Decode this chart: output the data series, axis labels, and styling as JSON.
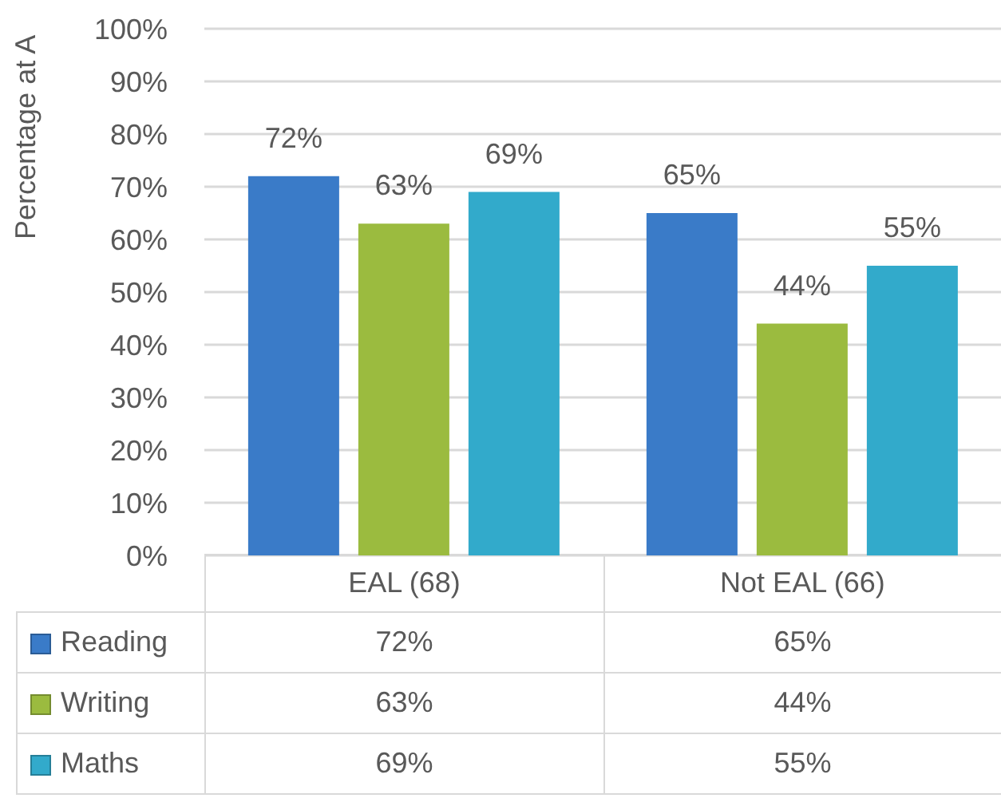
{
  "chart_data": {
    "type": "bar",
    "ylabel": "Percentage at A",
    "categories": [
      "EAL (68)",
      "Not EAL (66)"
    ],
    "series": [
      {
        "name": "Reading",
        "color": "#3a7bc8",
        "values": [
          72,
          65
        ],
        "value_labels": [
          "72%",
          "65%"
        ]
      },
      {
        "name": "Writing",
        "color": "#9bbb3f",
        "values": [
          63,
          44
        ],
        "value_labels": [
          "63%",
          "44%"
        ]
      },
      {
        "name": "Maths",
        "color": "#32aacb",
        "values": [
          69,
          55
        ],
        "value_labels": [
          "69%",
          "55%"
        ]
      }
    ],
    "ylim": [
      0,
      100
    ],
    "yticks": [
      {
        "value": 0,
        "label": "0%"
      },
      {
        "value": 10,
        "label": "10%"
      },
      {
        "value": 20,
        "label": "20%"
      },
      {
        "value": 30,
        "label": "30%"
      },
      {
        "value": 40,
        "label": "40%"
      },
      {
        "value": 50,
        "label": "50%"
      },
      {
        "value": 60,
        "label": "60%"
      },
      {
        "value": 70,
        "label": "70%"
      },
      {
        "value": 80,
        "label": "80%"
      },
      {
        "value": 90,
        "label": "90%"
      },
      {
        "value": 100,
        "label": "100%"
      }
    ],
    "grid": "y",
    "legend": "bottom"
  }
}
